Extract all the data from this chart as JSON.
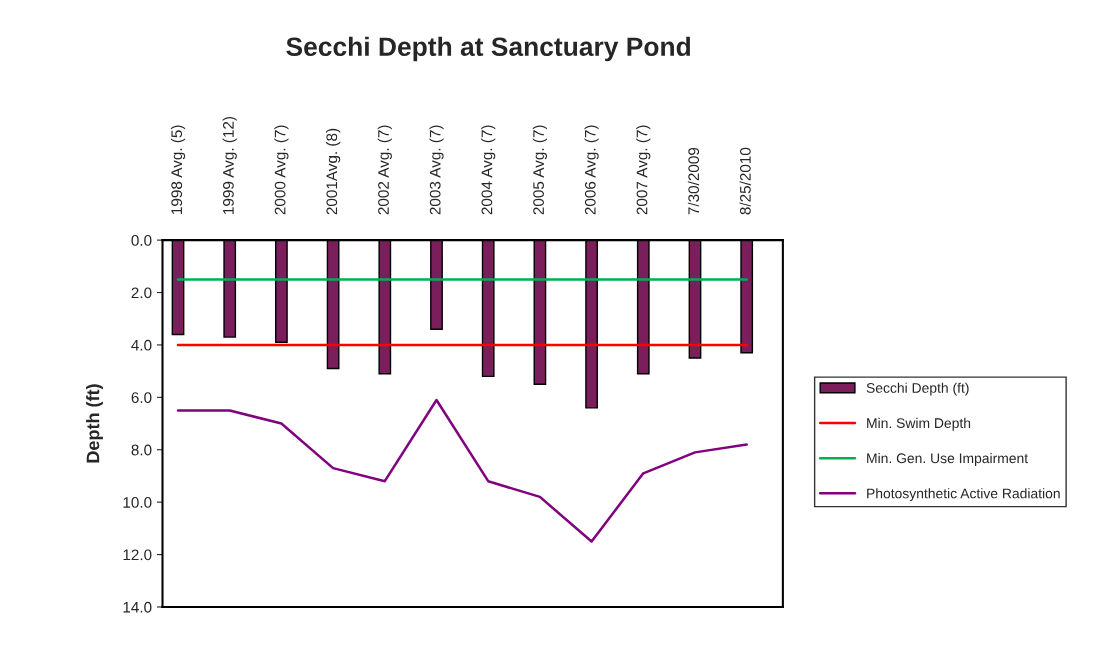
{
  "chart_data": {
    "type": "bar",
    "title": "Secchi Depth at Sanctuary Pond",
    "ylabel": "Depth (ft)",
    "categories": [
      "1998 Avg. (5)",
      "1999 Avg. (12)",
      "2000 Avg. (7)",
      "2001Avg. (8)",
      "2002 Avg. (7)",
      "2003 Avg. (7)",
      "2004 Avg. (7)",
      "2005 Avg. (7)",
      "2006 Avg. (7)",
      "2007 Avg. (7)",
      "7/30/2009",
      "8/25/2010"
    ],
    "series": [
      {
        "name": "Secchi Depth (ft)",
        "color": "#7b1f5c",
        "values": [
          3.6,
          3.7,
          3.9,
          4.9,
          5.1,
          3.4,
          5.2,
          5.5,
          6.4,
          5.1,
          4.5,
          4.3
        ]
      },
      {
        "name": "Min. Swim Depth",
        "type": "line",
        "color": "#ff0000",
        "values": [
          4.0,
          4.0,
          4.0,
          4.0,
          4.0,
          4.0,
          4.0,
          4.0,
          4.0,
          4.0,
          4.0,
          4.0
        ]
      },
      {
        "name": "Min. Gen. Use Impairment",
        "type": "line",
        "color": "#00b050",
        "values": [
          1.5,
          1.5,
          1.5,
          1.5,
          1.5,
          1.5,
          1.5,
          1.5,
          1.5,
          1.5,
          1.5,
          1.5
        ]
      },
      {
        "name": "Photosynthetic Active Radiation",
        "type": "line",
        "color": "#800080",
        "values": [
          6.5,
          6.5,
          7.0,
          8.7,
          9.2,
          6.1,
          9.2,
          9.8,
          11.5,
          8.9,
          8.1,
          7.8
        ]
      }
    ],
    "ylim": [
      14,
      0
    ],
    "yticks": [
      {
        "value": 0,
        "label": "0.0"
      },
      {
        "value": 2,
        "label": "2.0"
      },
      {
        "value": 4,
        "label": "4.0"
      },
      {
        "value": 6,
        "label": "6.0"
      },
      {
        "value": 8,
        "label": "8.0"
      },
      {
        "value": 10,
        "label": "10.0"
      },
      {
        "value": 12,
        "label": "12.0"
      },
      {
        "value": 14,
        "label": "14.0"
      }
    ],
    "grid": false,
    "legend": "right"
  }
}
